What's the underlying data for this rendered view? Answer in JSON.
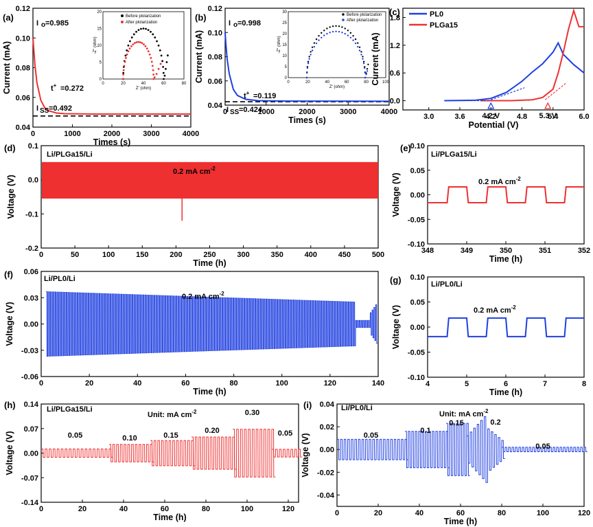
{
  "colors": {
    "red": "#ee3030",
    "blue": "#1f3fe0",
    "black": "#000000"
  },
  "chart_data": [
    {
      "panel": "(a)",
      "type": "line",
      "xlabel": "Times (s)",
      "ylabel": "Current (mA)",
      "xlim": [
        0,
        4000
      ],
      "ylim": [
        0.04,
        0.12
      ],
      "xticks": [
        "0",
        "1000",
        "2000",
        "3000",
        "4000"
      ],
      "yticks": [
        "0.04",
        "0.06",
        "0.08",
        "0.10",
        "0.12"
      ],
      "series": [
        {
          "color": "red",
          "x": [
            0,
            20,
            50,
            100,
            200,
            300,
            400,
            600,
            800,
            1500,
            4000
          ],
          "y": [
            0.1,
            0.093,
            0.082,
            0.07,
            0.058,
            0.053,
            0.051,
            0.0495,
            0.049,
            0.0488,
            0.0488
          ]
        }
      ],
      "baseline": 0.0475,
      "annotations": [
        "I",
        "o",
        "=0.985",
        "t",
        "+",
        "=0.272",
        "I",
        "SS",
        "=0.492"
      ],
      "inset": {
        "xlabel": "Z' (ohm)",
        "ylabel": "-Z'' (ohm)",
        "xticks": [
          "0",
          "20",
          "40",
          "60",
          "80"
        ],
        "yticks": [
          "0",
          "5",
          "10",
          "15",
          "20"
        ],
        "legend": [
          "Before plolarization",
          "After plolarization"
        ]
      }
    },
    {
      "panel": "(b)",
      "type": "line",
      "xlabel": "Times (s)",
      "ylabel": "Current (mA)",
      "xlim": [
        0,
        4000
      ],
      "ylim": [
        0.04,
        0.12
      ],
      "xticks": [
        "0",
        "1000",
        "2000",
        "3000",
        "4000"
      ],
      "yticks": [
        "0.04",
        "0.06",
        "0.08",
        "0.10",
        "0.12"
      ],
      "series": [
        {
          "color": "blue",
          "x": [
            0,
            20,
            50,
            100,
            200,
            300,
            500,
            800,
            1500,
            4000
          ],
          "y": [
            0.1,
            0.09,
            0.078,
            0.066,
            0.053,
            0.048,
            0.0448,
            0.0437,
            0.0433,
            0.0432
          ]
        }
      ],
      "baseline": 0.0428,
      "annotations": [
        "I",
        "o",
        "=0.998",
        "t",
        "+",
        "=0.119",
        "I",
        "SS",
        "=0.424"
      ],
      "inset": {
        "xlabel": "Z' (ohm)",
        "ylabel": "-Z'' (ohm)",
        "xticks": [
          "0",
          "20",
          "40",
          "60",
          "80",
          "100"
        ],
        "yticks": [
          "0",
          "5",
          "10",
          "15",
          "20",
          "25",
          "30"
        ],
        "legend": [
          "Before plolarization",
          "After plolarization"
        ]
      }
    },
    {
      "panel": "(c)",
      "type": "line",
      "xlabel": "Potential (V)",
      "ylabel": "Current (mA)",
      "xlim": [
        2.5,
        6.0
      ],
      "ylim": [
        -0.2,
        2.0
      ],
      "xticks": [
        "3.0",
        "3.6",
        "4.2",
        "4.8",
        "5.4",
        "6.0"
      ],
      "yticks": [
        "0.0",
        "0.6",
        "1.2",
        "1.8"
      ],
      "series": [
        {
          "name": "PL0",
          "color": "blue",
          "x": [
            3.3,
            3.9,
            4.2,
            4.5,
            4.8,
            5.0,
            5.2,
            5.4,
            5.5,
            5.6,
            5.8,
            6.0
          ],
          "y": [
            0.0,
            0.01,
            0.05,
            0.18,
            0.42,
            0.62,
            0.8,
            1.05,
            1.25,
            1.0,
            0.78,
            0.6
          ]
        },
        {
          "name": "PLGa15",
          "color": "red",
          "x": [
            4.0,
            4.6,
            5.0,
            5.2,
            5.4,
            5.5,
            5.6,
            5.7,
            5.8,
            5.9,
            6.0
          ],
          "y": [
            0.0,
            0.0,
            0.02,
            0.07,
            0.25,
            0.6,
            1.05,
            1.55,
            1.95,
            1.6,
            1.6
          ]
        }
      ],
      "annotations": [
        "4.2 V",
        "5.3 V"
      ]
    },
    {
      "panel": "(d)",
      "type": "line",
      "title": "Li/PLGa15/Li",
      "note": "0.2 mA cm",
      "note_sup": "-2",
      "xlabel": "Time (h)",
      "ylabel": "Voltage (V)",
      "xlim": [
        0,
        500
      ],
      "ylim": [
        -0.2,
        0.1
      ],
      "xticks": [
        "0",
        "50",
        "100",
        "150",
        "200",
        "250",
        "300",
        "350",
        "400",
        "450",
        "500"
      ],
      "yticks": [
        "-0.2",
        "-0.1",
        "0.0",
        "0.1"
      ],
      "series": [
        {
          "color": "red",
          "envelope_top": 0.052,
          "envelope_bottom": -0.055,
          "spike_x": 209,
          "spike_y": -0.12
        }
      ]
    },
    {
      "panel": "(e)",
      "type": "line",
      "title": "Li/PLGa15/Li",
      "note": "0.2 mA cm",
      "note_sup": "-2",
      "xlabel": "Time (h)",
      "ylabel": "Voltage (V)",
      "xlim": [
        348,
        352
      ],
      "ylim": [
        -0.1,
        0.1
      ],
      "xticks": [
        "348",
        "349",
        "350",
        "351",
        "352"
      ],
      "yticks": [
        "-0.10",
        "-0.05",
        "0.00",
        "0.05",
        "0.10"
      ],
      "series": [
        {
          "color": "red",
          "high": 0.016,
          "low": -0.016,
          "period": 1
        }
      ]
    },
    {
      "panel": "(f)",
      "type": "line",
      "title": "Li/PL0/Li",
      "note": "0.2 mA cm",
      "note_sup": "-2",
      "xlabel": "Time (h)",
      "ylabel": "Voltage (V)",
      "xlim": [
        0,
        140
      ],
      "ylim": [
        -0.06,
        0.06
      ],
      "xticks": [
        "0",
        "20",
        "40",
        "60",
        "80",
        "100",
        "120",
        "140"
      ],
      "yticks": [
        "-0.06",
        "-0.03",
        "0.00",
        "0.03",
        "0.06"
      ],
      "series": [
        {
          "color": "blue",
          "amp_start": 0.037,
          "amp_end": 0.025,
          "amp_tail": 0.004
        }
      ]
    },
    {
      "panel": "(g)",
      "type": "line",
      "title": "Li/PL0/Li",
      "note": "0.2 mA cm",
      "note_sup": "-2",
      "xlabel": "Time (h)",
      "ylabel": "Voltage (V)",
      "xlim": [
        4,
        8
      ],
      "ylim": [
        -0.1,
        0.1
      ],
      "xticks": [
        "4",
        "5",
        "6",
        "7",
        "8"
      ],
      "yticks": [
        "-0.10",
        "-0.05",
        "0.00",
        "0.05",
        "0.10"
      ],
      "series": [
        {
          "color": "blue",
          "high": 0.018,
          "low": -0.019,
          "period": 1
        }
      ]
    },
    {
      "panel": "(h)",
      "type": "line",
      "title": "Li/PLGa15/Li",
      "note": "Unit: mA cm",
      "note_sup": "-2",
      "xlabel": "Time (h)",
      "ylabel": "Voltage (V)",
      "xlim": [
        0,
        125
      ],
      "ylim": [
        -0.14,
        0.14
      ],
      "xticks": [
        "0",
        "20",
        "40",
        "60",
        "80",
        "100",
        "120"
      ],
      "yticks": [
        "-0.14",
        "-0.07",
        "0.00",
        "0.07",
        "0.14"
      ],
      "segments": [
        {
          "label": "0.05",
          "x": [
            0,
            33
          ],
          "amp": 0.012
        },
        {
          "label": "0.10",
          "x": [
            33,
            53
          ],
          "amp": 0.025
        },
        {
          "label": "0.15",
          "x": [
            53,
            73
          ],
          "amp": 0.036
        },
        {
          "label": "0.20",
          "x": [
            73,
            93
          ],
          "amp": 0.046
        },
        {
          "label": "0.30",
          "x": [
            93,
            112
          ],
          "amp": 0.068
        },
        {
          "label": "0.05",
          "x": [
            112,
            125
          ],
          "amp": 0.011
        }
      ],
      "series": [
        {
          "color": "red"
        }
      ]
    },
    {
      "panel": "(i)",
      "type": "line",
      "title": "Li/PL0/Li",
      "note": "Unit: mA cm",
      "note_sup": "-2",
      "xlabel": "Time (h)",
      "ylabel": "Voltage (V)",
      "xlim": [
        0,
        120
      ],
      "ylim": [
        -0.05,
        0.04
      ],
      "xticks": [
        "0",
        "20",
        "40",
        "60",
        "80",
        "100",
        "120"
      ],
      "yticks": [
        "-0.04",
        "-0.02",
        "0.00",
        "0.02",
        "0.04"
      ],
      "segments": [
        {
          "label": "0.05",
          "x": [
            0,
            33
          ],
          "amp": 0.009
        },
        {
          "label": "0.1",
          "x": [
            33,
            53
          ],
          "amp": 0.016
        },
        {
          "label": "0.15",
          "x": [
            53,
            63
          ],
          "amp": 0.023
        },
        {
          "label": "0.2",
          "x": [
            63,
            80
          ],
          "amp": 0.02
        },
        {
          "label": "0.05",
          "x": [
            80,
            120
          ],
          "amp": 0.002
        }
      ],
      "series": [
        {
          "color": "blue"
        }
      ]
    }
  ]
}
